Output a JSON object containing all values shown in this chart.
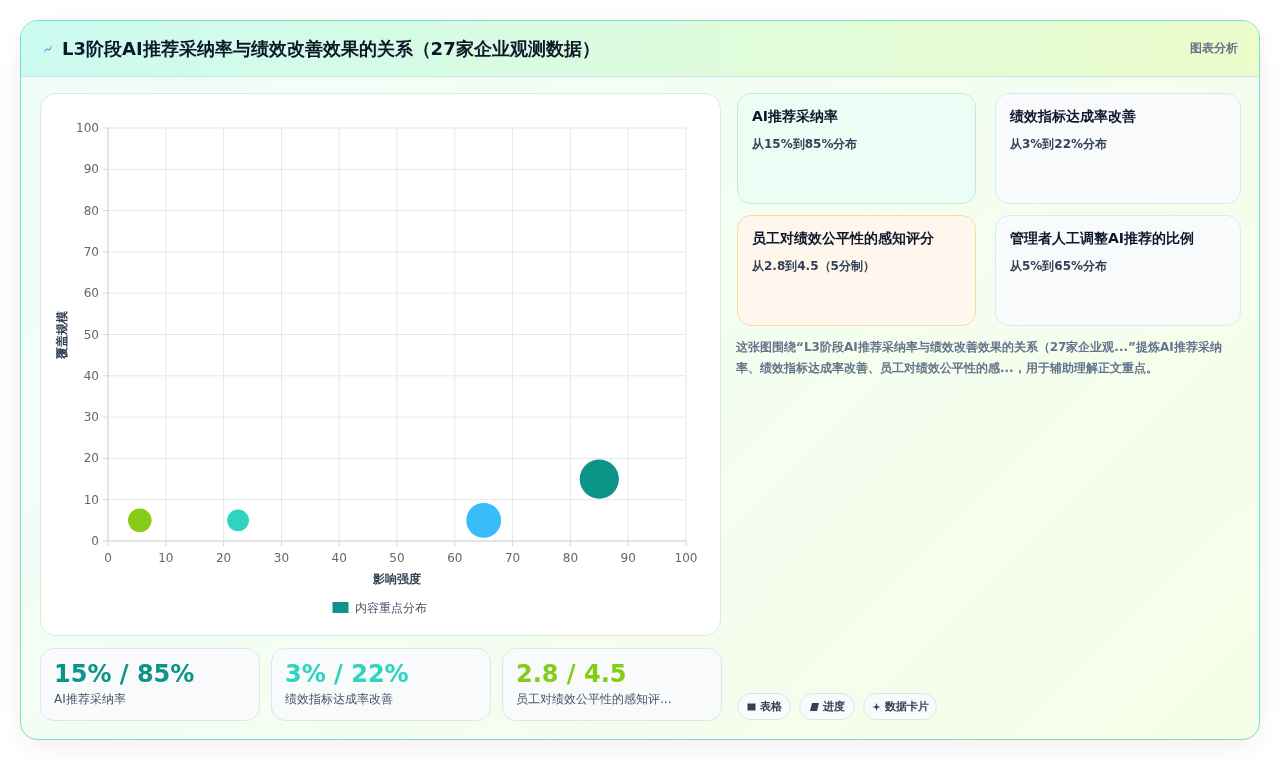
{
  "chart_data": [
    {
      "type": "bubble",
      "title": "L3阶段AI推荐采纳率与绩效改善效果的关系（27家企业观测数据）",
      "xlabel": "影响强度",
      "ylabel": "覆盖规模",
      "x": [
        5.5,
        22.5,
        65,
        85
      ],
      "series": [
        {
          "name": "内容重点分布",
          "color": "#0d9488",
          "values": [
            5,
            5,
            5,
            15
          ],
          "sizes": [
            0.36,
            0.31,
            0.79,
            1
          ],
          "colors": [
            "#84cc16",
            "#2dd4bf",
            "#38bdf8",
            "#0d9488"
          ]
        }
      ],
      "xlim": [
        0,
        100
      ],
      "xticks": [
        0,
        10,
        20,
        30,
        40,
        50,
        60,
        70,
        80,
        90,
        100
      ],
      "ylim": [
        0,
        100
      ],
      "yticks": [
        0,
        10,
        20,
        30,
        40,
        50,
        60,
        70,
        80,
        90,
        100
      ],
      "grid": true,
      "legend": "bottom"
    },
    {
      "type": "other",
      "annotations": [
        "图表分析",
        "AI推荐采纳率",
        "从15%到85%分布",
        "绩效指标达成率改善",
        "从3%到22%分布",
        "员工对绩效公平性的感知评分",
        "从2.8到4.5（5分制）",
        "管理者人工调整AI推荐的比例",
        "从5%到65%分布",
        "这张图围绕“L3阶段AI推荐采纳率与绩效改善效果的关系（27家企业观...”提炼AI推荐采纳率、绩效指标达成率改善、员工对绩效公平性的感...，用于辅助理解正文重点。",
        "15% / 85%",
        "AI推荐采纳率",
        "3% / 22%",
        "绩效指标达成率改善",
        "2.8 / 4.5",
        "员工对绩效公平性的感知评...",
        "表格",
        "进度",
        "数据卡片"
      ]
    }
  ]
}
